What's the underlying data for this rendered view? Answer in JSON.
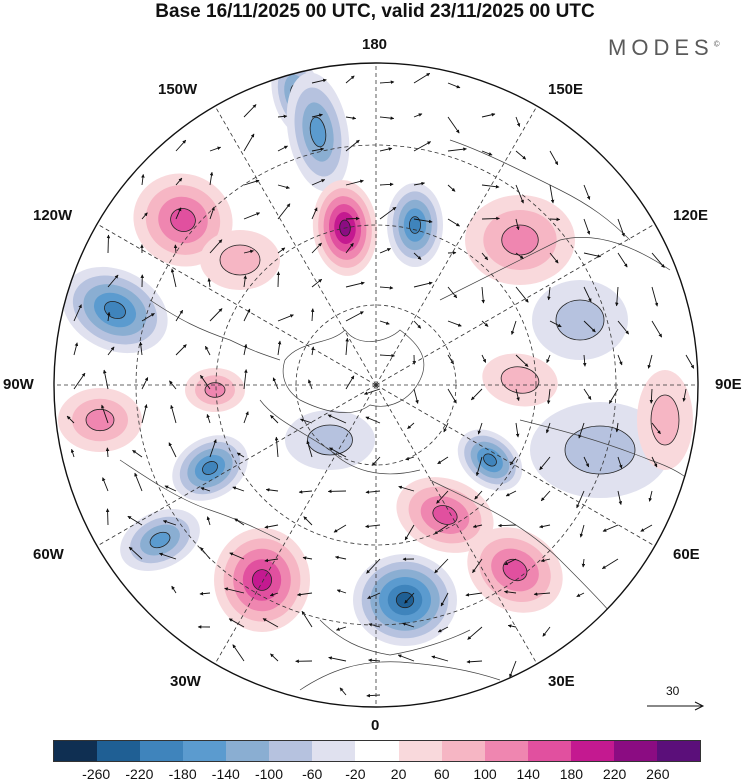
{
  "title": "Base 16/11/2025 00 UTC, valid 23/11/2025 00 UTC",
  "brand": "MODES",
  "brand_mark": "©",
  "longitude_labels": {
    "top": "180",
    "bottom": "0",
    "left": "90W",
    "right": "90E",
    "upper_left_near": "150W",
    "upper_left_far": "120W",
    "upper_right_near": "150E",
    "upper_right_far": "120E",
    "lower_left_far": "60W",
    "lower_left_near": "30W",
    "lower_right_far": "60E",
    "lower_right_near": "30E"
  },
  "colorbar": {
    "colors": [
      "#0f2f52",
      "#1f5f94",
      "#3f84bc",
      "#5b9bcf",
      "#8aaed2",
      "#b6c2df",
      "#e0e1ef",
      "#ffffff",
      "#f9d9dc",
      "#f6b6c4",
      "#ef86b0",
      "#e1509f",
      "#c41990",
      "#8b0c82",
      "#5b0f7a"
    ],
    "ticks": [
      "-260",
      "-220",
      "-180",
      "-140",
      "-100",
      "-60",
      "-20",
      "20",
      "60",
      "100",
      "140",
      "180",
      "220",
      "260"
    ]
  },
  "reference_vector": "30",
  "map_features": {
    "anomalies": [
      {
        "name": "neg-alaska-pacific",
        "sign": -1,
        "magnitude": 110
      },
      {
        "name": "neg-bering-north",
        "sign": -1,
        "magnitude": 120
      },
      {
        "name": "pos-east-siberian-sea",
        "sign": 1,
        "magnitude": 200
      },
      {
        "name": "neg-chukotka",
        "sign": -1,
        "magnitude": 160
      },
      {
        "name": "pos-north-pacific-east",
        "sign": 1,
        "magnitude": 130
      },
      {
        "name": "neg-gulf-of-alaska",
        "sign": -1,
        "magnitude": 170
      },
      {
        "name": "pos-canada-west",
        "sign": 1,
        "magnitude": 80
      },
      {
        "name": "neg-hudson",
        "sign": -1,
        "magnitude": 180
      },
      {
        "name": "neg-labrador",
        "sign": -1,
        "magnitude": 110
      },
      {
        "name": "pos-mid-atlantic",
        "sign": 1,
        "magnitude": 180
      },
      {
        "name": "neg-europe-west",
        "sign": -1,
        "magnitude": 220
      },
      {
        "name": "pos-scandinavia-russia",
        "sign": 1,
        "magnitude": 110
      },
      {
        "name": "pos-west-siberia",
        "sign": 1,
        "magnitude": 130
      },
      {
        "name": "neg-ural-north",
        "sign": -1,
        "magnitude": 160
      },
      {
        "name": "pos-central-siberia",
        "sign": 1,
        "magnitude": 60
      },
      {
        "name": "pos-east-siberia",
        "sign": 1,
        "magnitude": 70
      },
      {
        "name": "neg-mongolia",
        "sign": -1,
        "magnitude": 40
      },
      {
        "name": "pos-pacific-side",
        "sign": 1,
        "magnitude": 50
      },
      {
        "name": "neg-central-asia",
        "sign": -1,
        "magnitude": 45
      },
      {
        "name": "pos-east-asia-coast",
        "sign": 1,
        "magnitude": 55
      },
      {
        "name": "pos-north-atlantic-east",
        "sign": 1,
        "magnitude": 70
      },
      {
        "name": "neg-polar-arctic",
        "sign": -1,
        "magnitude": 30
      }
    ]
  }
}
